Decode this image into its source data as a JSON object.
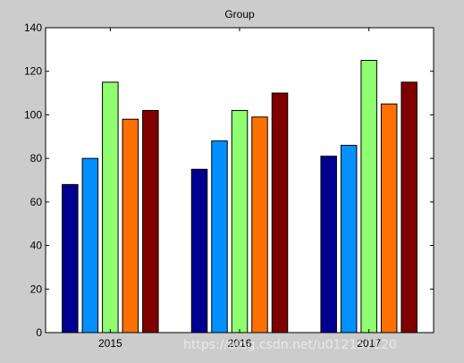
{
  "chart_data": {
    "type": "bar",
    "title": "Group",
    "xlabel": "",
    "ylabel": "",
    "categories": [
      "2015",
      "2016",
      "2017"
    ],
    "ylim": [
      0,
      140
    ],
    "yticks": [
      0,
      20,
      40,
      60,
      80,
      100,
      120,
      140
    ],
    "grid": false,
    "series": [
      {
        "color": "#000090",
        "values": [
          68,
          75,
          81
        ]
      },
      {
        "color": "#0090ff",
        "values": [
          80,
          88,
          86
        ]
      },
      {
        "color": "#8fff70",
        "values": [
          115,
          102,
          125
        ]
      },
      {
        "color": "#ff7000",
        "values": [
          98,
          99,
          105
        ]
      },
      {
        "color": "#800000",
        "values": [
          102,
          110,
          115
        ]
      }
    ]
  },
  "watermark": "https://blog.csdn.net/u012157120"
}
